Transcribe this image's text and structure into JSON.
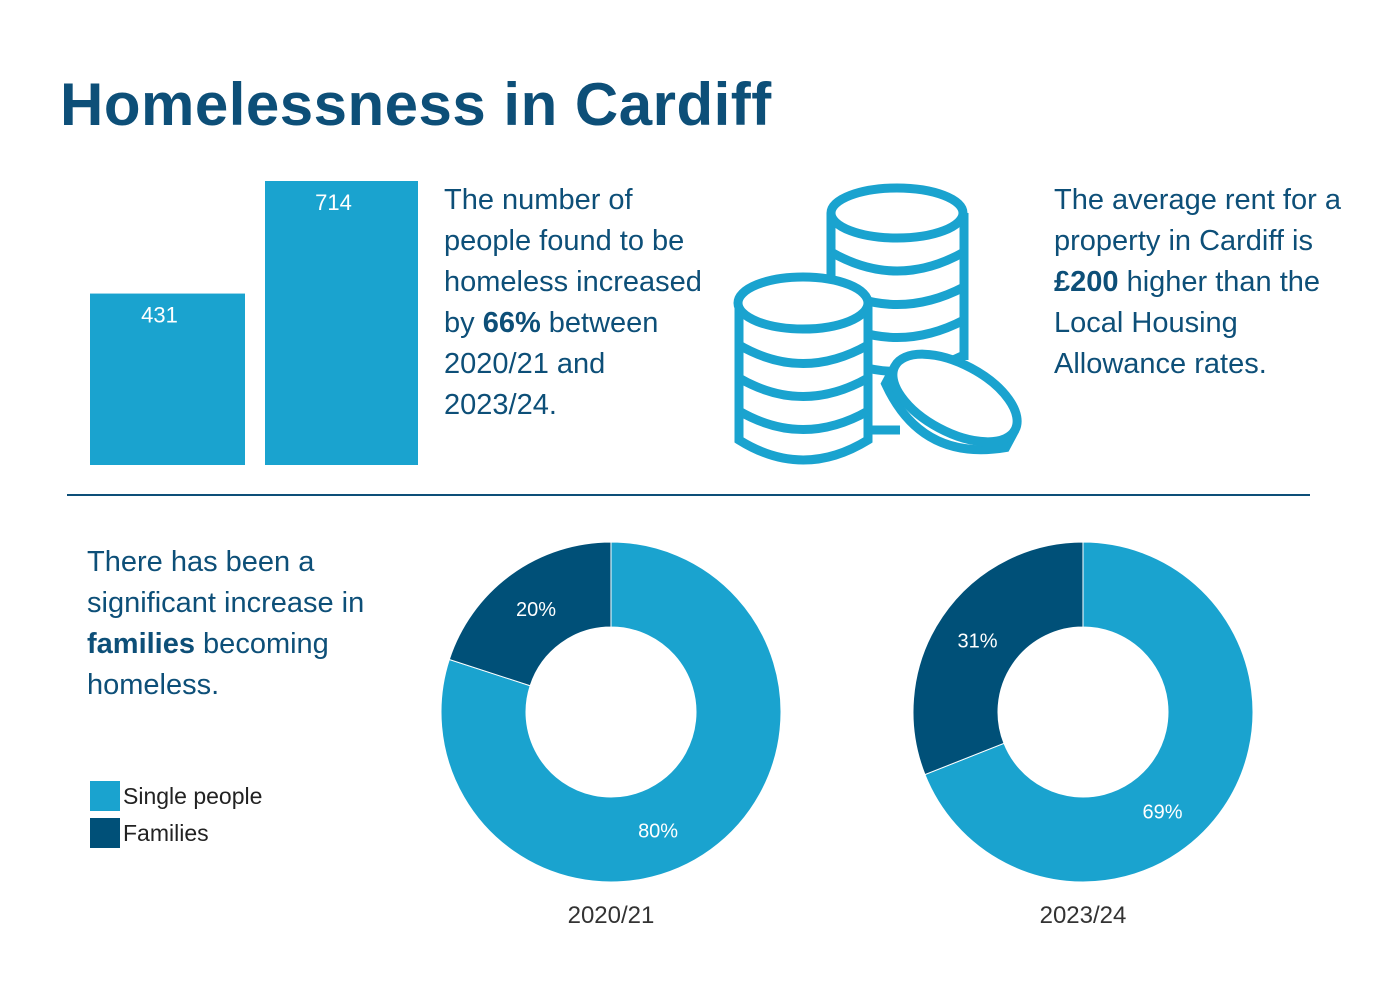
{
  "title": "Homelessness in Cardiff",
  "colors": {
    "single": "#1aa3cf",
    "families": "#005078",
    "text": "#0d4f78"
  },
  "stat1": {
    "pre": "The number of people found to be homeless increased by ",
    "bold": "66%",
    "post": " between 2020/21 and 2023/24."
  },
  "stat2": {
    "pre": "The average rent for a property in Cardiff is ",
    "bold": "£200",
    "post": " higher than the Local Housing Allowance rates."
  },
  "stat3": {
    "pre": "There has been a significant increase in ",
    "bold": "families",
    "post": " becoming homeless."
  },
  "icon": "stacked-coins-icon",
  "legend": [
    {
      "label": "Single people",
      "color": "#1aa3cf"
    },
    {
      "label": "Families",
      "color": "#005078"
    }
  ],
  "chart_data": [
    {
      "type": "bar",
      "values": [
        431,
        714
      ],
      "data_labels": [
        "431",
        "714"
      ]
    },
    {
      "type": "pie",
      "category": "2020/21",
      "slices": [
        {
          "name": "Single people",
          "value": 80,
          "label": "80%"
        },
        {
          "name": "Families",
          "value": 20,
          "label": "20%"
        }
      ]
    },
    {
      "type": "pie",
      "category": "2023/24",
      "slices": [
        {
          "name": "Single people",
          "value": 69,
          "label": "69%"
        },
        {
          "name": "Families",
          "value": 31,
          "label": "31%"
        }
      ]
    }
  ]
}
